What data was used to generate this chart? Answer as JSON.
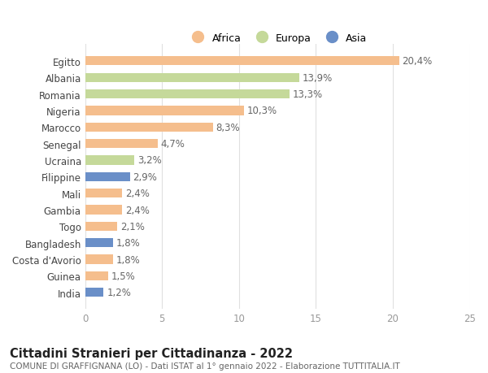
{
  "countries": [
    "Egitto",
    "Albania",
    "Romania",
    "Nigeria",
    "Marocco",
    "Senegal",
    "Ucraina",
    "Filippine",
    "Mali",
    "Gambia",
    "Togo",
    "Bangladesh",
    "Costa d'Avorio",
    "Guinea",
    "India"
  ],
  "values": [
    20.4,
    13.9,
    13.3,
    10.3,
    8.3,
    4.7,
    3.2,
    2.9,
    2.4,
    2.4,
    2.1,
    1.8,
    1.8,
    1.5,
    1.2
  ],
  "continents": [
    "Africa",
    "Europa",
    "Europa",
    "Africa",
    "Africa",
    "Africa",
    "Europa",
    "Asia",
    "Africa",
    "Africa",
    "Africa",
    "Asia",
    "Africa",
    "Africa",
    "Asia"
  ],
  "continent_colors": {
    "Africa": "#F5BE8D",
    "Europa": "#C5D99A",
    "Asia": "#6A8FC8"
  },
  "legend_labels": [
    "Africa",
    "Europa",
    "Asia"
  ],
  "legend_colors": [
    "#F5BE8D",
    "#C5D99A",
    "#6A8FC8"
  ],
  "xlim": [
    0,
    25
  ],
  "xticks": [
    0,
    5,
    10,
    15,
    20,
    25
  ],
  "title": "Cittadini Stranieri per Cittadinanza - 2022",
  "subtitle": "COMUNE DI GRAFFIGNANA (LO) - Dati ISTAT al 1° gennaio 2022 - Elaborazione TUTTITALIA.IT",
  "background_color": "#ffffff",
  "grid_color": "#e0e0e0",
  "bar_height": 0.55,
  "label_fontsize": 8.5,
  "title_fontsize": 10.5,
  "subtitle_fontsize": 7.5,
  "value_color": "#666666",
  "ytick_color": "#444444",
  "xtick_color": "#999999"
}
